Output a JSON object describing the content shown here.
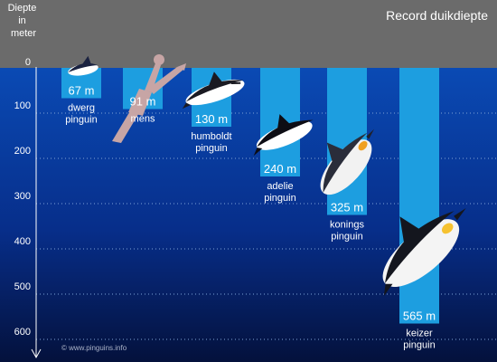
{
  "chart_data": {
    "type": "bar",
    "title": "Record duikdiepte",
    "ylabel": [
      "Diepte",
      "in",
      "meter"
    ],
    "yticks": [
      0,
      100,
      200,
      300,
      400,
      500,
      600
    ],
    "ylim": [
      0,
      630
    ],
    "grid": true,
    "categories": [
      {
        "lines": [
          "dwerg",
          "pinguin"
        ],
        "value": 67,
        "label": "67 m",
        "icon": "little-penguin-icon"
      },
      {
        "lines": [
          "mens"
        ],
        "value": 91,
        "label": "91 m",
        "icon": "human-diver-icon"
      },
      {
        "lines": [
          "humboldt",
          "pinguin"
        ],
        "value": 130,
        "label": "130 m",
        "icon": "humboldt-penguin-icon"
      },
      {
        "lines": [
          "adelie",
          "pinguin"
        ],
        "value": 240,
        "label": "240 m",
        "icon": "adelie-penguin-icon"
      },
      {
        "lines": [
          "konings",
          "pinguin"
        ],
        "value": 325,
        "label": "325 m",
        "icon": "king-penguin-icon"
      },
      {
        "lines": [
          "keizer",
          "pinguin"
        ],
        "value": 565,
        "label": "565 m",
        "icon": "emperor-penguin-icon"
      }
    ]
  },
  "credit": "© www.pinguins.info",
  "colors": {
    "sky": "#6b6b6b",
    "sea_top": "#0a4ab4",
    "sea_bottom": "#04113c",
    "bar": "#1d9ee0",
    "text": "#ffffff"
  }
}
